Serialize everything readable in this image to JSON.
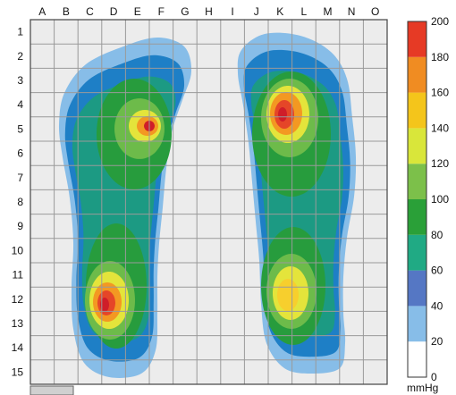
{
  "chart_data": {
    "type": "heatmap",
    "columns": [
      "A",
      "B",
      "C",
      "D",
      "E",
      "F",
      "G",
      "H",
      "I",
      "J",
      "K",
      "L",
      "M",
      "N",
      "O"
    ],
    "rows": [
      "1",
      "2",
      "3",
      "4",
      "5",
      "6",
      "7",
      "8",
      "9",
      "10",
      "11",
      "12",
      "13",
      "14",
      "15"
    ],
    "unit": "mmHg",
    "colorbar": {
      "ticks": [
        "0",
        "20",
        "40",
        "60",
        "80",
        "100",
        "120",
        "140",
        "160",
        "180",
        "200"
      ],
      "bands": [
        {
          "from": 0,
          "to": 20,
          "color": "#ffffff"
        },
        {
          "from": 20,
          "to": 40,
          "color": "#87bde8"
        },
        {
          "from": 40,
          "to": 60,
          "color": "#5577c4"
        },
        {
          "from": 60,
          "to": 80,
          "color": "#20aa84"
        },
        {
          "from": 80,
          "to": 100,
          "color": "#2aa038"
        },
        {
          "from": 100,
          "to": 120,
          "color": "#7cc04a"
        },
        {
          "from": 120,
          "to": 140,
          "color": "#d9e63a"
        },
        {
          "from": 140,
          "to": 160,
          "color": "#f4c51b"
        },
        {
          "from": 160,
          "to": 180,
          "color": "#f08c22"
        },
        {
          "from": 180,
          "to": 200,
          "color": "#e63a25"
        }
      ]
    },
    "scale_max": 200,
    "background_color": "#ececec",
    "grid_color": "#9a9a9a",
    "contour_colors": {
      "c20": "#87bde8",
      "c40": "#1e7fc6",
      "c60": "#1c9a83",
      "c80": "#279c3d",
      "c100": "#6dbb4a",
      "c120": "#e4e43b",
      "c140": "#f7cf2d",
      "c160": "#f39822",
      "c180": "#e54628",
      "c200": "#cf1d29"
    },
    "feet": [
      {
        "name": "left-foot",
        "peaks": [
          {
            "col": "E",
            "row": "5",
            "value": 200
          },
          {
            "col": "D",
            "row": "12",
            "value": 200
          }
        ]
      },
      {
        "name": "right-foot",
        "peaks": [
          {
            "col": "K",
            "row": "4.5",
            "value": 200
          },
          {
            "col": "K",
            "row": "12",
            "value": 140
          }
        ]
      }
    ]
  }
}
